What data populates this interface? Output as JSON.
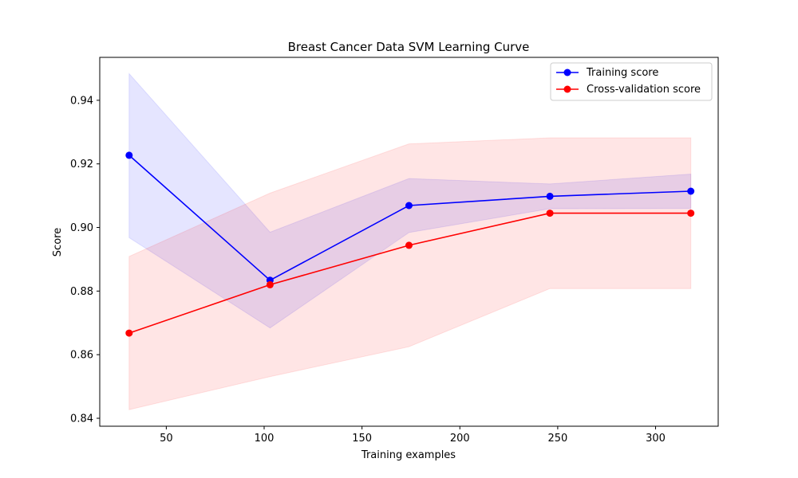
{
  "chart_data": {
    "type": "line",
    "title": "Breast Cancer Data SVM Learning Curve",
    "xlabel": "Training examples",
    "ylabel": "Score",
    "xlim": [
      16,
      332
    ],
    "ylim": [
      0.8375,
      0.9535
    ],
    "xticks": [
      50,
      100,
      150,
      200,
      250,
      300
    ],
    "yticks": [
      0.84,
      0.86,
      0.88,
      0.9,
      0.92,
      0.94
    ],
    "ytick_labels": [
      "0.84",
      "0.86",
      "0.88",
      "0.90",
      "0.92",
      "0.94"
    ],
    "grid": false,
    "legend_position": "top-right",
    "x": [
      31,
      103,
      174,
      246,
      318
    ],
    "series": [
      {
        "name": "Training score",
        "color": "#0000ff",
        "band_color": "#0000ff",
        "values": [
          0.9227,
          0.8834,
          0.9069,
          0.9098,
          0.9114
        ],
        "band_lower": [
          0.8968,
          0.8684,
          0.8984,
          0.9059,
          0.906
        ],
        "band_upper": [
          0.9484,
          0.8985,
          0.9154,
          0.9137,
          0.9168
        ]
      },
      {
        "name": "Cross-validation score",
        "color": "#ff0000",
        "band_color": "#ff0000",
        "values": [
          0.8668,
          0.882,
          0.8944,
          0.9045,
          0.9045
        ],
        "band_lower": [
          0.8427,
          0.8531,
          0.8625,
          0.8808,
          0.8808
        ],
        "band_upper": [
          0.8909,
          0.9108,
          0.9263,
          0.9282,
          0.9282
        ]
      }
    ]
  }
}
